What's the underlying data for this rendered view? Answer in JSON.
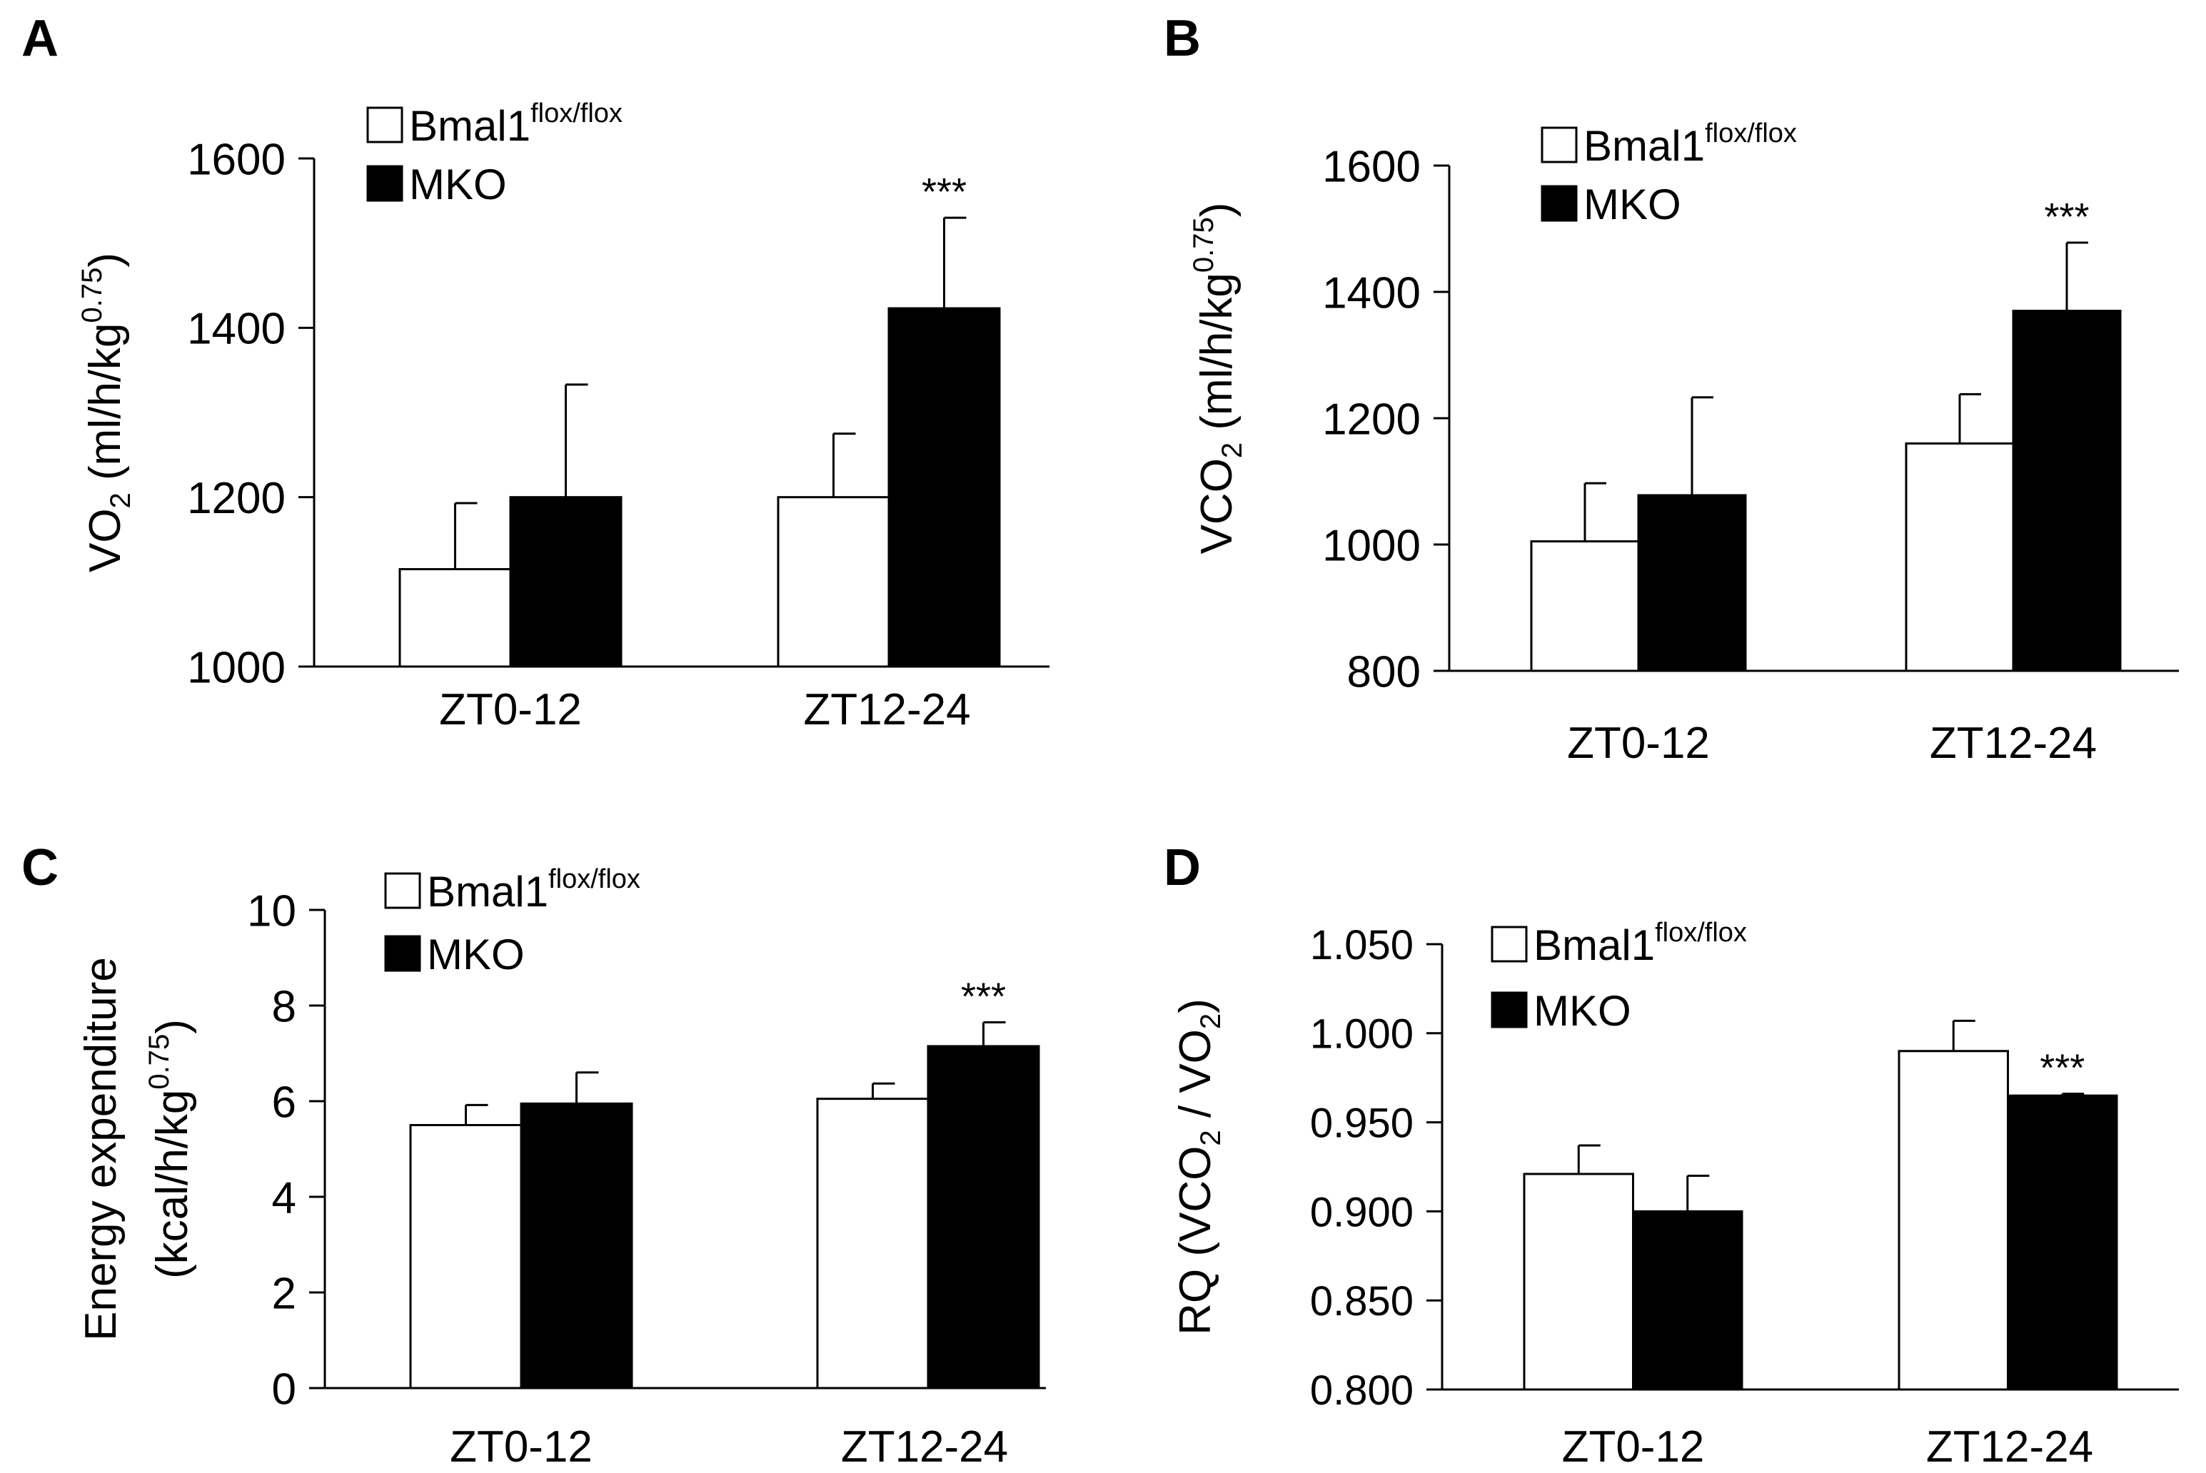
{
  "chart_data": [
    {
      "panel": "A",
      "type": "bar",
      "categories": [
        "ZT0-12",
        "ZT12-24"
      ],
      "series": [
        {
          "name": "Bmal1",
          "name_sup": "flox/flox",
          "fill": "#ffffff",
          "values": [
            1115,
            1200
          ],
          "errors": [
            78,
            75
          ]
        },
        {
          "name": "MKO",
          "fill": "#000000",
          "values": [
            1200,
            1423
          ],
          "errors": [
            133,
            107
          ]
        }
      ],
      "ylabel_main": "VO",
      "ylabel_sub": "2",
      "ylabel_unit": " (ml/h/kg",
      "ylabel_sup": "0.75",
      "ylabel_close": ")",
      "ylim": [
        1000,
        1600
      ],
      "yticks": [
        "1000",
        "1200",
        "1400",
        "1600"
      ],
      "annotation": "***"
    },
    {
      "panel": "B",
      "type": "bar",
      "categories": [
        "ZT0-12",
        "ZT12-24"
      ],
      "series": [
        {
          "name": "Bmal1",
          "name_sup": "flox/flox",
          "fill": "#ffffff",
          "values": [
            1005,
            1160
          ],
          "errors": [
            92,
            78
          ]
        },
        {
          "name": "MKO",
          "fill": "#000000",
          "values": [
            1078,
            1370
          ],
          "errors": [
            155,
            108
          ]
        }
      ],
      "ylabel_main": "VCO",
      "ylabel_sub": "2",
      "ylabel_unit": " (ml/h/kg",
      "ylabel_sup": "0.75",
      "ylabel_close": ")",
      "ylim": [
        800,
        1600
      ],
      "yticks": [
        "800",
        "1000",
        "1200",
        "1400",
        "1600"
      ],
      "annotation": "***"
    },
    {
      "panel": "C",
      "type": "bar",
      "categories": [
        "ZT0-12",
        "ZT12-24"
      ],
      "series": [
        {
          "name": "Bmal1",
          "name_sup": "flox/flox",
          "fill": "#ffffff",
          "values": [
            5.5,
            6.05
          ],
          "errors": [
            0.42,
            0.32
          ]
        },
        {
          "name": "MKO",
          "fill": "#000000",
          "values": [
            5.95,
            7.15
          ],
          "errors": [
            0.65,
            0.5
          ]
        }
      ],
      "ylabel_line1": "Energy expenditure",
      "ylabel_main": "(kcal/h/kg",
      "ylabel_sup": "0.75",
      "ylabel_close": ")",
      "ylim": [
        0,
        10
      ],
      "yticks": [
        "0",
        "2",
        "4",
        "6",
        "8",
        "10"
      ],
      "annotation": "***"
    },
    {
      "panel": "D",
      "type": "bar",
      "categories": [
        "ZT0-12",
        "ZT12-24"
      ],
      "series": [
        {
          "name": "Bmal1",
          "name_sup": "flox/flox",
          "fill": "#ffffff",
          "values": [
            0.921,
            0.99
          ],
          "errors": [
            0.016,
            0.017
          ]
        },
        {
          "name": "MKO",
          "fill": "#000000",
          "values": [
            0.9,
            0.965
          ],
          "errors": [
            0.02,
            0.001
          ]
        }
      ],
      "ylabel_main": "RQ (VCO",
      "ylabel_sub": "2",
      "ylabel_mid": " / VO",
      "ylabel_sub2": "2",
      "ylabel_close": ")",
      "ylim": [
        0.8,
        1.05
      ],
      "yticks": [
        "0.800",
        "0.850",
        "0.900",
        "0.950",
        "1.000",
        "1.050"
      ],
      "annotation": "***"
    }
  ]
}
